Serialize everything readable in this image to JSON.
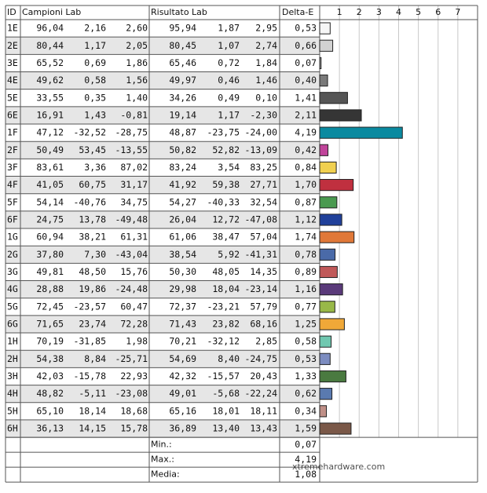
{
  "header": {
    "id": "ID",
    "campioni": "Campioni Lab",
    "risultato": "Risultato Lab",
    "delta": "Delta-E"
  },
  "axis": {
    "xlim": [
      0,
      8
    ],
    "xticks": [
      1,
      2,
      3,
      4,
      5,
      6,
      7
    ],
    "grid": true
  },
  "rows": [
    {
      "id": "1E",
      "campioni": [
        "96,04",
        "2,16",
        "2,60"
      ],
      "risultato": [
        "95,94",
        "1,87",
        "2,95"
      ],
      "delta": {
        "value": 0.53,
        "label": "0,53"
      },
      "color": "#f6f6f6"
    },
    {
      "id": "2E",
      "campioni": [
        "80,44",
        "1,17",
        "2,05"
      ],
      "risultato": [
        "80,45",
        "1,07",
        "2,74"
      ],
      "delta": {
        "value": 0.66,
        "label": "0,66"
      },
      "color": "#d2d2d2"
    },
    {
      "id": "3E",
      "campioni": [
        "65,52",
        "0,69",
        "1,86"
      ],
      "risultato": [
        "65,46",
        "0,72",
        "1,84"
      ],
      "delta": {
        "value": 0.07,
        "label": "0,07"
      },
      "color": "#a8a8a8"
    },
    {
      "id": "4E",
      "campioni": [
        "49,62",
        "0,58",
        "1,56"
      ],
      "risultato": [
        "49,97",
        "0,46",
        "1,46"
      ],
      "delta": {
        "value": 0.4,
        "label": "0,40"
      },
      "color": "#7a7a7a"
    },
    {
      "id": "5E",
      "campioni": [
        "33,55",
        "0,35",
        "1,40"
      ],
      "risultato": [
        "34,26",
        "0,49",
        "0,10"
      ],
      "delta": {
        "value": 1.41,
        "label": "1,41"
      },
      "color": "#555555"
    },
    {
      "id": "6E",
      "campioni": [
        "16,91",
        "1,43",
        "-0,81"
      ],
      "risultato": [
        "19,14",
        "1,17",
        "-2,30"
      ],
      "delta": {
        "value": 2.11,
        "label": "2,11"
      },
      "color": "#353535"
    },
    {
      "id": "1F",
      "campioni": [
        "47,12",
        "-32,52",
        "-28,75"
      ],
      "risultato": [
        "48,87",
        "-23,75",
        "-24,00"
      ],
      "delta": {
        "value": 4.19,
        "label": "4,19"
      },
      "color": "#0a8aa0"
    },
    {
      "id": "2F",
      "campioni": [
        "50,49",
        "53,45",
        "-13,55"
      ],
      "risultato": [
        "50,82",
        "52,82",
        "-13,09"
      ],
      "delta": {
        "value": 0.42,
        "label": "0,42"
      },
      "color": "#c0449a"
    },
    {
      "id": "3F",
      "campioni": [
        "83,61",
        "3,36",
        "87,02"
      ],
      "risultato": [
        "83,24",
        "3,54",
        "83,25"
      ],
      "delta": {
        "value": 0.84,
        "label": "0,84"
      },
      "color": "#f0d050"
    },
    {
      "id": "4F",
      "campioni": [
        "41,05",
        "60,75",
        "31,17"
      ],
      "risultato": [
        "41,92",
        "59,38",
        "27,71"
      ],
      "delta": {
        "value": 1.7,
        "label": "1,70"
      },
      "color": "#c0303f"
    },
    {
      "id": "5F",
      "campioni": [
        "54,14",
        "-40,76",
        "34,75"
      ],
      "risultato": [
        "54,27",
        "-40,33",
        "32,54"
      ],
      "delta": {
        "value": 0.87,
        "label": "0,87"
      },
      "color": "#4a9a50"
    },
    {
      "id": "6F",
      "campioni": [
        "24,75",
        "13,78",
        "-49,48"
      ],
      "risultato": [
        "26,04",
        "12,72",
        "-47,08"
      ],
      "delta": {
        "value": 1.12,
        "label": "1,12"
      },
      "color": "#20409a"
    },
    {
      "id": "1G",
      "campioni": [
        "60,94",
        "38,21",
        "61,31"
      ],
      "risultato": [
        "61,06",
        "38,47",
        "57,04"
      ],
      "delta": {
        "value": 1.74,
        "label": "1,74"
      },
      "color": "#e07838"
    },
    {
      "id": "2G",
      "campioni": [
        "37,80",
        "7,30",
        "-43,04"
      ],
      "risultato": [
        "38,54",
        "5,92",
        "-41,31"
      ],
      "delta": {
        "value": 0.78,
        "label": "0,78"
      },
      "color": "#4a6aa8"
    },
    {
      "id": "3G",
      "campioni": [
        "49,81",
        "48,50",
        "15,76"
      ],
      "risultato": [
        "50,30",
        "48,05",
        "14,35"
      ],
      "delta": {
        "value": 0.89,
        "label": "0,89"
      },
      "color": "#c05858"
    },
    {
      "id": "4G",
      "campioni": [
        "28,88",
        "19,86",
        "-24,48"
      ],
      "risultato": [
        "29,98",
        "18,04",
        "-23,14"
      ],
      "delta": {
        "value": 1.16,
        "label": "1,16"
      },
      "color": "#5a3a7a"
    },
    {
      "id": "5G",
      "campioni": [
        "72,45",
        "-23,57",
        "60,47"
      ],
      "risultato": [
        "72,37",
        "-23,21",
        "57,79"
      ],
      "delta": {
        "value": 0.77,
        "label": "0,77"
      },
      "color": "#98b848"
    },
    {
      "id": "6G",
      "campioni": [
        "71,65",
        "23,74",
        "72,28"
      ],
      "risultato": [
        "71,43",
        "23,82",
        "68,16"
      ],
      "delta": {
        "value": 1.25,
        "label": "1,25"
      },
      "color": "#f0a838"
    },
    {
      "id": "1H",
      "campioni": [
        "70,19",
        "-31,85",
        "1,98"
      ],
      "risultato": [
        "70,21",
        "-32,12",
        "2,85"
      ],
      "delta": {
        "value": 0.58,
        "label": "0,58"
      },
      "color": "#70c8b0"
    },
    {
      "id": "2H",
      "campioni": [
        "54,38",
        "8,84",
        "-25,71"
      ],
      "risultato": [
        "54,69",
        "8,40",
        "-24,75"
      ],
      "delta": {
        "value": 0.53,
        "label": "0,53"
      },
      "color": "#7c8cc0"
    },
    {
      "id": "3H",
      "campioni": [
        "42,03",
        "-15,78",
        "22,93"
      ],
      "risultato": [
        "42,32",
        "-15,57",
        "20,43"
      ],
      "delta": {
        "value": 1.33,
        "label": "1,33"
      },
      "color": "#4a7a40"
    },
    {
      "id": "4H",
      "campioni": [
        "48,82",
        "-5,11",
        "-23,08"
      ],
      "risultato": [
        "49,01",
        "-5,68",
        "-22,24"
      ],
      "delta": {
        "value": 0.62,
        "label": "0,62"
      },
      "color": "#5a7ab0"
    },
    {
      "id": "5H",
      "campioni": [
        "65,10",
        "18,14",
        "18,68"
      ],
      "risultato": [
        "65,16",
        "18,01",
        "18,11"
      ],
      "delta": {
        "value": 0.34,
        "label": "0,34"
      },
      "color": "#c09088"
    },
    {
      "id": "6H",
      "campioni": [
        "36,13",
        "14,15",
        "15,78"
      ],
      "risultato": [
        "36,89",
        "13,40",
        "13,43"
      ],
      "delta": {
        "value": 1.59,
        "label": "1,59"
      },
      "color": "#7a5848"
    }
  ],
  "summary": [
    {
      "label": "Min.:",
      "value": "0,07"
    },
    {
      "label": "Max.:",
      "value": "4,19"
    },
    {
      "label": "Media:",
      "value": "1,08"
    }
  ],
  "watermark": "xtremehardware.com"
}
